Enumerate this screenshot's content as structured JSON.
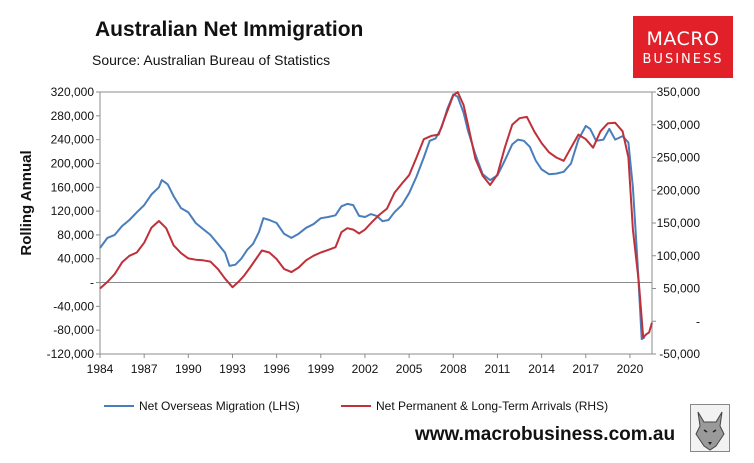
{
  "header": {
    "title": "Australian Net Immigration",
    "source": "Source: Australian Bureau of Statistics",
    "logo_line1": "MACRO",
    "logo_line2": "BUSINESS",
    "website": "www.macrobusiness.com.au"
  },
  "colors": {
    "blue": "#4a7ebb",
    "red": "#c0303a",
    "logo_bg": "#e1202a",
    "plot_border": "#8c8c8c"
  },
  "chart_data": {
    "type": "line",
    "title": "Australian Net Immigration",
    "ylabel": "Rolling Annual",
    "xlim": [
      1984,
      2021.5
    ],
    "ylim_left": [
      -120000,
      320000
    ],
    "ylim_right": [
      -50000,
      350000
    ],
    "x_ticks": [
      "1984",
      "1987",
      "1990",
      "1993",
      "1996",
      "1999",
      "2002",
      "2005",
      "2008",
      "2011",
      "2014",
      "2017",
      "2020"
    ],
    "y_ticks_left": [
      "320,000",
      "280,000",
      "240,000",
      "200,000",
      "160,000",
      "120,000",
      "80,000",
      "40,000",
      "-",
      "-40,000",
      "-80,000",
      "-120,000"
    ],
    "y_ticks_right": [
      "350,000",
      "300,000",
      "250,000",
      "200,000",
      "150,000",
      "100,000",
      "50,000",
      "-",
      "-50,000"
    ],
    "grid": false,
    "legend": "bottom",
    "series": [
      {
        "name": "Net Overseas Migration (LHS)",
        "axis": "left",
        "color": "#4a7ebb",
        "points": [
          [
            1984.0,
            58000
          ],
          [
            1984.5,
            75000
          ],
          [
            1985.0,
            80000
          ],
          [
            1985.5,
            95000
          ],
          [
            1986.0,
            105000
          ],
          [
            1986.5,
            118000
          ],
          [
            1987.0,
            130000
          ],
          [
            1987.5,
            148000
          ],
          [
            1988.0,
            160000
          ],
          [
            1988.2,
            172000
          ],
          [
            1988.6,
            165000
          ],
          [
            1989.0,
            145000
          ],
          [
            1989.5,
            125000
          ],
          [
            1990.0,
            118000
          ],
          [
            1990.5,
            100000
          ],
          [
            1991.0,
            90000
          ],
          [
            1991.5,
            80000
          ],
          [
            1992.0,
            65000
          ],
          [
            1992.5,
            50000
          ],
          [
            1992.8,
            28000
          ],
          [
            1993.2,
            30000
          ],
          [
            1993.6,
            40000
          ],
          [
            1994.0,
            55000
          ],
          [
            1994.4,
            65000
          ],
          [
            1994.8,
            85000
          ],
          [
            1995.1,
            108000
          ],
          [
            1995.5,
            105000
          ],
          [
            1996.0,
            100000
          ],
          [
            1996.5,
            82000
          ],
          [
            1997.0,
            75000
          ],
          [
            1997.5,
            82000
          ],
          [
            1998.0,
            92000
          ],
          [
            1998.5,
            98000
          ],
          [
            1999.0,
            108000
          ],
          [
            1999.5,
            110000
          ],
          [
            2000.0,
            113000
          ],
          [
            2000.4,
            128000
          ],
          [
            2000.8,
            132000
          ],
          [
            2001.2,
            130000
          ],
          [
            2001.6,
            112000
          ],
          [
            2002.0,
            110000
          ],
          [
            2002.4,
            115000
          ],
          [
            2002.8,
            112000
          ],
          [
            2003.2,
            103000
          ],
          [
            2003.6,
            105000
          ],
          [
            2004.0,
            118000
          ],
          [
            2004.5,
            130000
          ],
          [
            2005.0,
            150000
          ],
          [
            2005.5,
            178000
          ],
          [
            2006.0,
            210000
          ],
          [
            2006.4,
            238000
          ],
          [
            2006.8,
            242000
          ],
          [
            2007.2,
            260000
          ],
          [
            2007.6,
            292000
          ],
          [
            2008.0,
            316000
          ],
          [
            2008.3,
            312000
          ],
          [
            2008.7,
            285000
          ],
          [
            2009.0,
            255000
          ],
          [
            2009.5,
            215000
          ],
          [
            2010.0,
            182000
          ],
          [
            2010.5,
            172000
          ],
          [
            2011.0,
            180000
          ],
          [
            2011.5,
            205000
          ],
          [
            2012.0,
            232000
          ],
          [
            2012.4,
            240000
          ],
          [
            2012.8,
            238000
          ],
          [
            2013.2,
            228000
          ],
          [
            2013.6,
            205000
          ],
          [
            2014.0,
            190000
          ],
          [
            2014.5,
            182000
          ],
          [
            2015.0,
            183000
          ],
          [
            2015.5,
            186000
          ],
          [
            2016.0,
            200000
          ],
          [
            2016.5,
            240000
          ],
          [
            2017.0,
            263000
          ],
          [
            2017.3,
            258000
          ],
          [
            2017.7,
            238000
          ],
          [
            2018.2,
            240000
          ],
          [
            2018.6,
            258000
          ],
          [
            2019.0,
            240000
          ],
          [
            2019.5,
            246000
          ],
          [
            2019.9,
            235000
          ],
          [
            2020.2,
            160000
          ],
          [
            2020.5,
            40000
          ],
          [
            2020.8,
            -95000
          ],
          [
            2021.0,
            -92000
          ]
        ]
      },
      {
        "name": "Net Permanent & Long-Term Arrivals (RHS)",
        "axis": "right",
        "color": "#c0303a",
        "points": [
          [
            1984.0,
            50000
          ],
          [
            1984.5,
            60000
          ],
          [
            1985.0,
            72000
          ],
          [
            1985.5,
            90000
          ],
          [
            1986.0,
            100000
          ],
          [
            1986.5,
            105000
          ],
          [
            1987.0,
            120000
          ],
          [
            1987.5,
            143000
          ],
          [
            1988.0,
            153000
          ],
          [
            1988.5,
            142000
          ],
          [
            1989.0,
            116000
          ],
          [
            1989.5,
            104000
          ],
          [
            1990.0,
            96000
          ],
          [
            1990.5,
            94000
          ],
          [
            1991.0,
            93000
          ],
          [
            1991.5,
            91000
          ],
          [
            1992.0,
            80000
          ],
          [
            1992.5,
            65000
          ],
          [
            1993.0,
            52000
          ],
          [
            1993.4,
            60000
          ],
          [
            1993.8,
            70000
          ],
          [
            1994.2,
            82000
          ],
          [
            1994.6,
            95000
          ],
          [
            1995.0,
            108000
          ],
          [
            1995.5,
            105000
          ],
          [
            1996.0,
            95000
          ],
          [
            1996.5,
            80000
          ],
          [
            1997.0,
            75000
          ],
          [
            1997.5,
            82000
          ],
          [
            1998.0,
            93000
          ],
          [
            1998.5,
            100000
          ],
          [
            1999.0,
            105000
          ],
          [
            1999.5,
            109000
          ],
          [
            2000.0,
            113000
          ],
          [
            2000.4,
            136000
          ],
          [
            2000.8,
            142000
          ],
          [
            2001.2,
            140000
          ],
          [
            2001.6,
            134000
          ],
          [
            2002.0,
            140000
          ],
          [
            2002.5,
            152000
          ],
          [
            2003.0,
            163000
          ],
          [
            2003.5,
            172000
          ],
          [
            2004.0,
            196000
          ],
          [
            2004.5,
            210000
          ],
          [
            2005.0,
            223000
          ],
          [
            2005.5,
            250000
          ],
          [
            2006.0,
            278000
          ],
          [
            2006.5,
            283000
          ],
          [
            2007.0,
            285000
          ],
          [
            2007.5,
            315000
          ],
          [
            2008.0,
            345000
          ],
          [
            2008.3,
            350000
          ],
          [
            2008.7,
            330000
          ],
          [
            2009.0,
            300000
          ],
          [
            2009.5,
            248000
          ],
          [
            2010.0,
            222000
          ],
          [
            2010.5,
            208000
          ],
          [
            2011.0,
            224000
          ],
          [
            2011.5,
            265000
          ],
          [
            2012.0,
            300000
          ],
          [
            2012.5,
            310000
          ],
          [
            2013.0,
            312000
          ],
          [
            2013.5,
            290000
          ],
          [
            2014.0,
            272000
          ],
          [
            2014.5,
            258000
          ],
          [
            2015.0,
            250000
          ],
          [
            2015.5,
            245000
          ],
          [
            2016.0,
            265000
          ],
          [
            2016.5,
            285000
          ],
          [
            2017.0,
            278000
          ],
          [
            2017.5,
            265000
          ],
          [
            2018.0,
            290000
          ],
          [
            2018.5,
            302000
          ],
          [
            2019.0,
            303000
          ],
          [
            2019.5,
            290000
          ],
          [
            2019.9,
            250000
          ],
          [
            2020.2,
            140000
          ],
          [
            2020.6,
            60000
          ],
          [
            2020.9,
            -25000
          ],
          [
            2021.1,
            -20000
          ],
          [
            2021.3,
            -17000
          ],
          [
            2021.5,
            -2000
          ]
        ]
      }
    ]
  }
}
